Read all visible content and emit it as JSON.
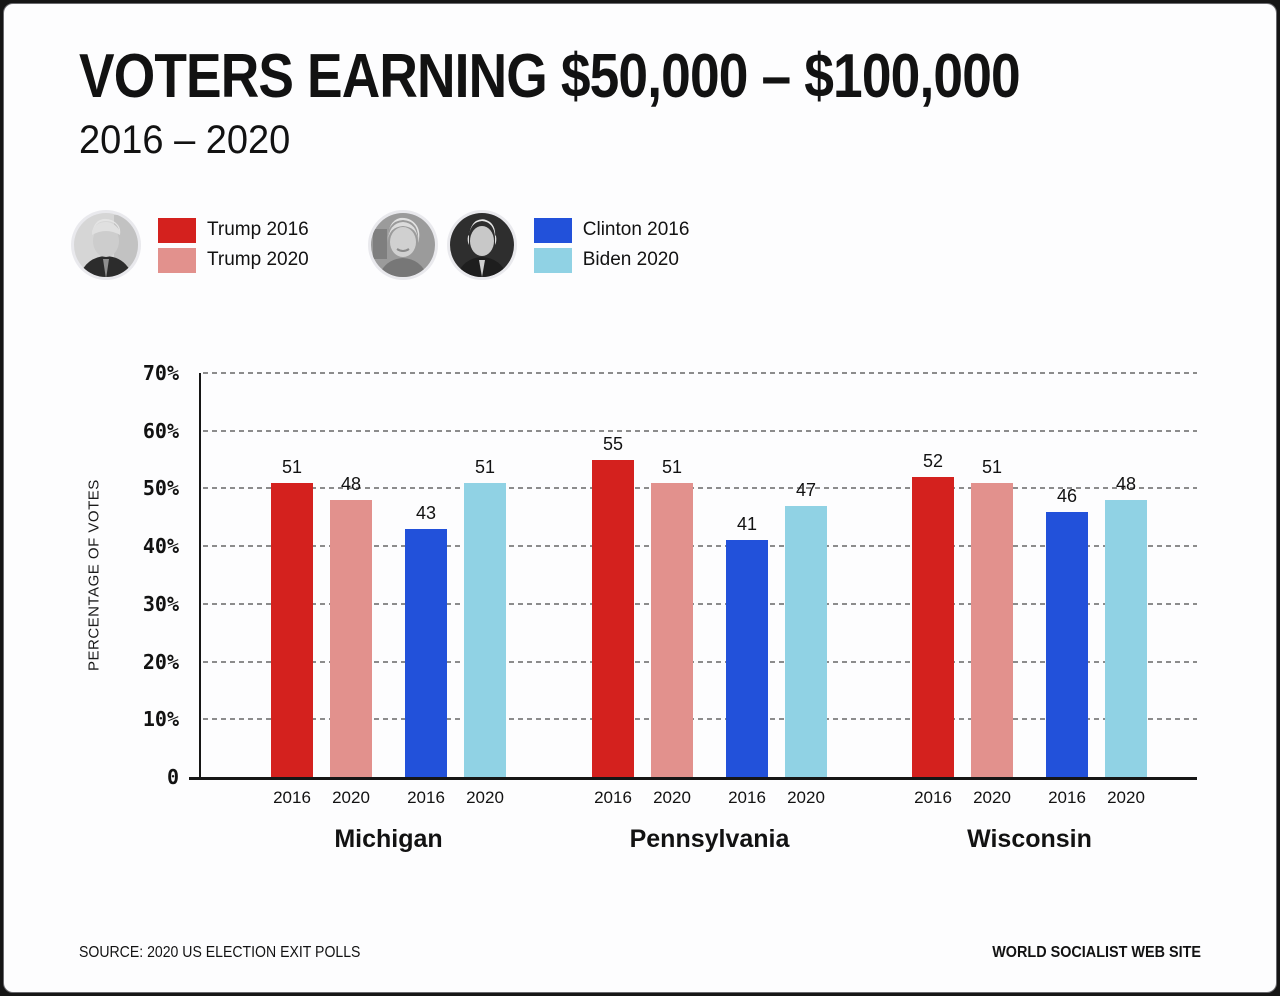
{
  "header": {
    "title": "VOTERS EARNING $50,000 – $100,000",
    "subtitle": "2016 – 2020"
  },
  "legend": {
    "groups": [
      {
        "portraits": [
          "Donald Trump"
        ],
        "entries": [
          {
            "label": "Trump 2016",
            "color": "#d4211e"
          },
          {
            "label": "Trump 2020",
            "color": "#e2918d"
          }
        ]
      },
      {
        "portraits": [
          "Hillary Clinton",
          "Joe Biden"
        ],
        "entries": [
          {
            "label": "Clinton 2016",
            "color": "#2251da"
          },
          {
            "label": "Biden 2020",
            "color": "#90d2e4"
          }
        ]
      }
    ]
  },
  "chart_data": {
    "type": "bar",
    "title": "VOTERS EARNING $50,000 – $100,000",
    "subtitle": "2016 – 2020",
    "xlabel": "",
    "ylabel": "PERCENTAGE OF VOTES",
    "ylim": [
      0,
      70
    ],
    "ytick_values": [
      0,
      10,
      20,
      30,
      40,
      50,
      60,
      70
    ],
    "ytick_labels": [
      "0",
      "10%",
      "20%",
      "30%",
      "40%",
      "50%",
      "60%",
      "70%"
    ],
    "grid": "horizontal-dashed",
    "legend_position": "top-left",
    "categories": [
      "Michigan",
      "Pennsylvania",
      "Wisconsin"
    ],
    "series": [
      {
        "name": "Trump 2016",
        "year_label": "2016",
        "color": "#d4211e",
        "values": [
          51,
          55,
          52
        ]
      },
      {
        "name": "Trump 2020",
        "year_label": "2020",
        "color": "#e2918d",
        "values": [
          48,
          51,
          51
        ]
      },
      {
        "name": "Clinton 2016",
        "year_label": "2016",
        "color": "#2251da",
        "values": [
          43,
          41,
          46
        ]
      },
      {
        "name": "Biden 2020",
        "year_label": "2020",
        "color": "#90d2e4",
        "values": [
          51,
          47,
          48
        ]
      }
    ]
  },
  "footer": {
    "source": "SOURCE: 2020 US ELECTION EXIT POLLS",
    "site": "WORLD SOCIALIST WEB SITE"
  }
}
